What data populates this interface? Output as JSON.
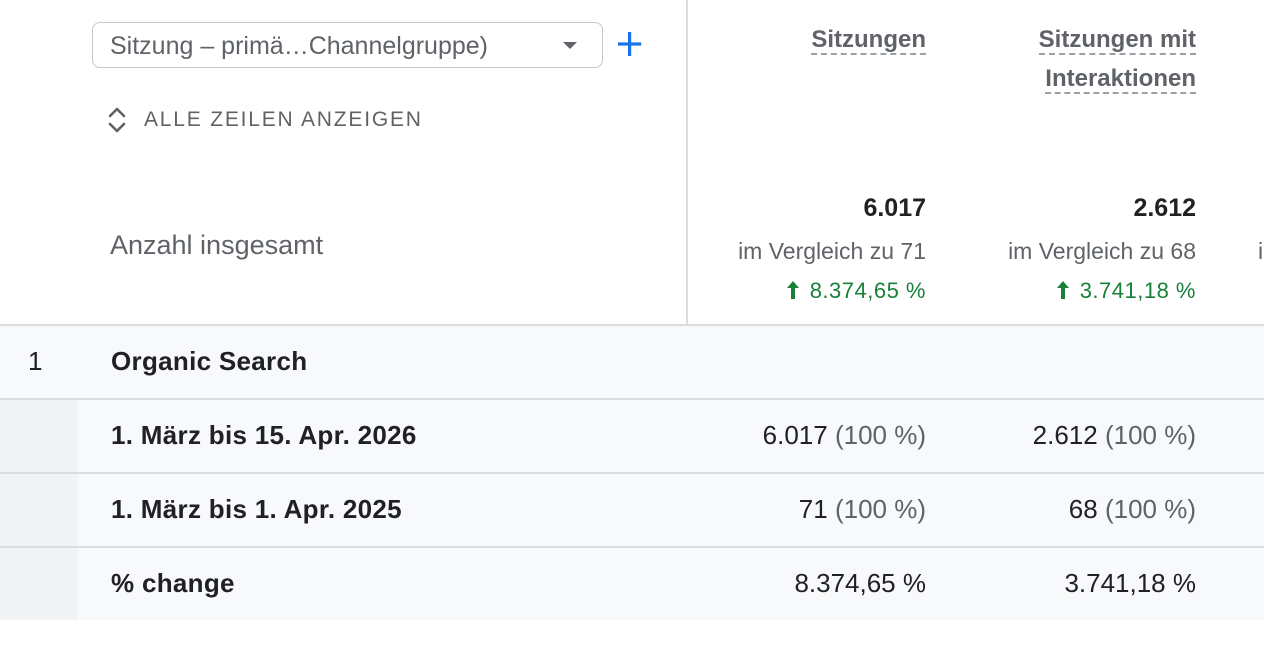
{
  "dimension_selector": {
    "value": "Sitzung – primä…Channelgruppe)"
  },
  "toolbar": {
    "show_all_rows_label": "ALLE ZEILEN ANZEIGEN"
  },
  "columns": [
    {
      "header_line1": "Sitzungen",
      "header_line2": "",
      "total": "6.017",
      "compare_text": "im Vergleich zu 71",
      "change": "8.374,65 %"
    },
    {
      "header_line1": "Sitzungen mit",
      "header_line2": "Interaktionen",
      "total": "2.612",
      "compare_text": "im Vergleich zu 68",
      "change": "3.741,18 %"
    }
  ],
  "totals": {
    "label": "Anzahl insgesamt"
  },
  "rows": [
    {
      "index": "1",
      "label": "Organic Search",
      "values": [
        "",
        ""
      ],
      "pcts": [
        "",
        ""
      ]
    },
    {
      "index": "",
      "label": "1. März bis 15. Apr. 2026",
      "values": [
        "6.017",
        "2.612"
      ],
      "pcts": [
        "(100 %)",
        "(100 %)"
      ]
    },
    {
      "index": "",
      "label": "1. März bis 1. Apr. 2025",
      "values": [
        "71",
        "68"
      ],
      "pcts": [
        "(100 %)",
        "(100 %)"
      ]
    },
    {
      "index": "",
      "label": "% change",
      "values": [
        "8.374,65 %",
        "3.741,18 %"
      ],
      "pcts": [
        "",
        ""
      ]
    }
  ],
  "colors": {
    "accent": "#1a73e8",
    "positive": "#188038",
    "divider": "#dadce0"
  }
}
